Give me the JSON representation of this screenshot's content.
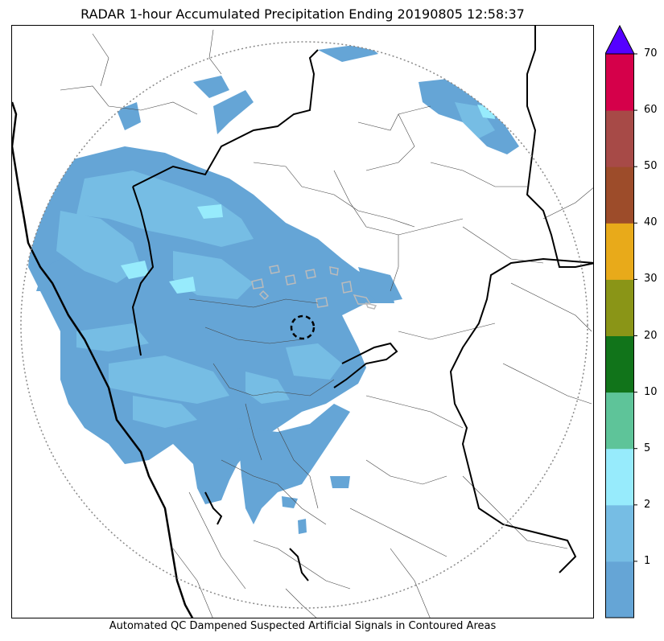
{
  "title": "RADAR 1-hour Accumulated Precipitation Ending 20190805 12:58:37",
  "caption": "Automated QC Dampened Suspected Artificial Signals in Contoured Areas",
  "colorbar": {
    "extend": "max",
    "extend_color": "#5500ff",
    "bins": [
      {
        "from": 0,
        "to": 1,
        "color": "#65a5d6"
      },
      {
        "from": 1,
        "to": 2,
        "color": "#76bde4"
      },
      {
        "from": 2,
        "to": 5,
        "color": "#97ebfc"
      },
      {
        "from": 5,
        "to": 10,
        "color": "#5ec499"
      },
      {
        "from": 10,
        "to": 20,
        "color": "#11741a"
      },
      {
        "from": 20,
        "to": 30,
        "color": "#8a9517"
      },
      {
        "from": 30,
        "to": 40,
        "color": "#e8aa1a"
      },
      {
        "from": 40,
        "to": 50,
        "color": "#9d4c2a"
      },
      {
        "from": 50,
        "to": 60,
        "color": "#a74a47"
      },
      {
        "from": 60,
        "to": 70,
        "color": "#d5004a"
      }
    ],
    "tick_labels": [
      "1",
      "2",
      "5",
      "10",
      "20",
      "30",
      "40",
      "50",
      "60",
      "70"
    ]
  },
  "map": {
    "radar_range_ring": "dotted-gray-circle",
    "radar_site_marker": "dashed-black-circle",
    "coastline_color": "#000000",
    "state_border_color": "#000000",
    "district_border_color": "#444444",
    "precip_light_color": "#65a5d6",
    "precip_moderate_color": "#76bde4",
    "precip_heavy_color": "#97ebfc",
    "qc_contour_color": "#bbbbbb"
  }
}
